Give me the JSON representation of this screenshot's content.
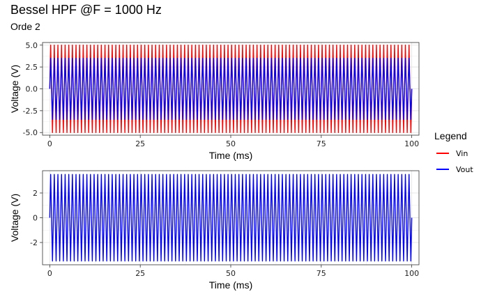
{
  "title": "Bessel HPF @F = 1000 Hz",
  "subtitle": "Orde 2",
  "colors": {
    "vin": "#ff0000",
    "vout": "#0000ff",
    "grid": "#e5e5e5",
    "panel_border": "#333333"
  },
  "legend": {
    "title": "Legend",
    "items": [
      {
        "label": "Vin",
        "color": "#ff0000"
      },
      {
        "label": "Vout",
        "color": "#0000ff"
      }
    ]
  },
  "chart_data": [
    {
      "type": "line",
      "xlabel": "Time (ms)",
      "ylabel": "Voltage (V)",
      "xlim": [
        -2,
        102
      ],
      "ylim": [
        -5.3,
        5.3
      ],
      "xticks": [
        0,
        25,
        50,
        75,
        100
      ],
      "xtick_labels": [
        "0",
        "25",
        "50",
        "75",
        "100"
      ],
      "yticks": [
        -5,
        -2.5,
        0,
        2.5,
        5
      ],
      "ytick_labels": [
        "-5.0",
        "-2.5",
        "0.0",
        "2.5",
        "5.0"
      ],
      "grid": true,
      "series": [
        {
          "name": "Vin",
          "frequency_hz": 1000,
          "amplitude_v": 5.0,
          "t_start_ms": 0,
          "t_end_ms": 100
        },
        {
          "name": "Vout",
          "frequency_hz": 1000,
          "amplitude_v": 3.5,
          "t_start_ms": 0,
          "t_end_ms": 100
        }
      ]
    },
    {
      "type": "line",
      "xlabel": "Time (ms)",
      "ylabel": "Voltage (V)",
      "xlim": [
        -2,
        102
      ],
      "ylim": [
        -3.8,
        3.8
      ],
      "xticks": [
        0,
        25,
        50,
        75,
        100
      ],
      "xtick_labels": [
        "0",
        "25",
        "50",
        "75",
        "100"
      ],
      "yticks": [
        -2,
        0,
        2
      ],
      "ytick_labels": [
        "-2",
        "0",
        "2"
      ],
      "grid": true,
      "series": [
        {
          "name": "Vout",
          "frequency_hz": 1000,
          "amplitude_v": 3.5,
          "t_start_ms": 0,
          "t_end_ms": 100
        }
      ]
    }
  ]
}
